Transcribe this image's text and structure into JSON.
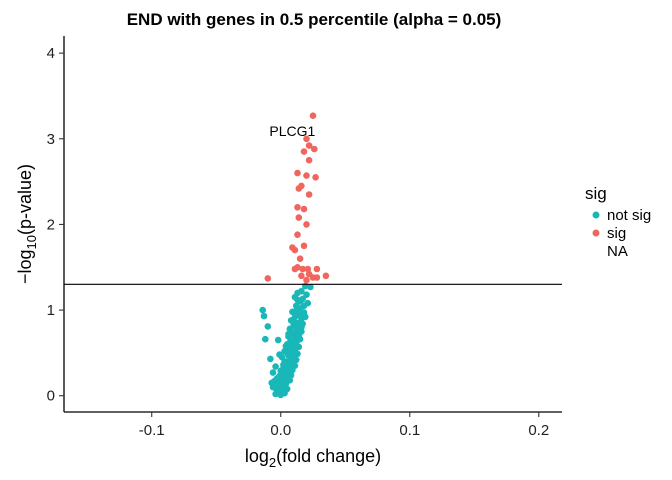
{
  "chart_data": {
    "type": "scatter",
    "title": "END with genes in 0.5 percentile (alpha = 0.05)",
    "xlabel": {
      "pre": "log",
      "sub": "2",
      "post": "(fold change)"
    },
    "ylabel": {
      "pre": "−log",
      "sub": "10",
      "post": "(p-value)"
    },
    "xlim": [
      -0.168,
      0.218
    ],
    "ylim": [
      -0.19,
      4.2
    ],
    "x_ticks": [
      -0.1,
      0.0,
      0.1,
      0.2
    ],
    "x_tick_labels": [
      "-0.1",
      "0.0",
      "0.1",
      "0.2"
    ],
    "y_ticks": [
      0,
      1,
      2,
      3,
      4
    ],
    "y_tick_labels": [
      "0",
      "1",
      "2",
      "3",
      "4"
    ],
    "hline": 1.301,
    "grid": false,
    "legend": {
      "title": "sig",
      "position": "right",
      "entries": [
        {
          "label": "not sig",
          "color": "#19b7b7"
        },
        {
          "label": "sig",
          "color": "#f0665e"
        },
        {
          "label": "NA",
          "color": null
        }
      ]
    },
    "annotations": [
      {
        "text": "PLCG1",
        "x": 0.009,
        "y": 3.09
      }
    ],
    "series": [
      {
        "name": "sig",
        "color": "#f0665e",
        "points": [
          [
            0.025,
            3.27
          ],
          [
            0.02,
            3.0
          ],
          [
            0.022,
            2.92
          ],
          [
            0.026,
            2.88
          ],
          [
            0.018,
            2.85
          ],
          [
            0.022,
            2.75
          ],
          [
            0.013,
            2.6
          ],
          [
            0.02,
            2.57
          ],
          [
            0.027,
            2.55
          ],
          [
            0.016,
            2.45
          ],
          [
            0.014,
            2.42
          ],
          [
            0.022,
            2.35
          ],
          [
            0.013,
            2.2
          ],
          [
            0.018,
            2.18
          ],
          [
            0.014,
            2.08
          ],
          [
            0.02,
            2.0
          ],
          [
            0.013,
            1.88
          ],
          [
            0.018,
            1.75
          ],
          [
            0.009,
            1.73
          ],
          [
            0.011,
            1.7
          ],
          [
            0.015,
            1.6
          ],
          [
            0.013,
            1.5
          ],
          [
            0.011,
            1.48
          ],
          [
            0.017,
            1.48
          ],
          [
            0.021,
            1.48
          ],
          [
            0.028,
            1.48
          ],
          [
            0.022,
            1.42
          ],
          [
            0.035,
            1.4
          ],
          [
            0.016,
            1.4
          ],
          [
            0.025,
            1.38
          ],
          [
            0.028,
            1.38
          ],
          [
            -0.01,
            1.37
          ],
          [
            0.02,
            1.35
          ]
        ]
      },
      {
        "name": "not sig",
        "color": "#19b7b7",
        "points": [
          [
            0.019,
            1.28
          ],
          [
            0.023,
            1.27
          ],
          [
            0.016,
            1.22
          ],
          [
            0.013,
            1.2
          ],
          [
            0.02,
            1.18
          ],
          [
            0.011,
            1.15
          ],
          [
            0.017,
            1.13
          ],
          [
            0.015,
            1.1
          ],
          [
            0.021,
            1.08
          ],
          [
            0.012,
            1.05
          ],
          [
            -0.014,
            1.0
          ],
          [
            0.009,
            0.98
          ],
          [
            0.018,
            0.97
          ],
          [
            0.014,
            0.95
          ],
          [
            -0.013,
            0.93
          ],
          [
            0.011,
            0.92
          ],
          [
            0.016,
            0.9
          ],
          [
            0.008,
            0.88
          ],
          [
            0.013,
            0.85
          ],
          [
            0.017,
            0.84
          ],
          [
            0.01,
            0.82
          ],
          [
            -0.01,
            0.81
          ],
          [
            0.014,
            0.8
          ],
          [
            0.007,
            0.78
          ],
          [
            0.012,
            0.76
          ],
          [
            0.016,
            0.75
          ],
          [
            0.009,
            0.73
          ],
          [
            0.013,
            0.71
          ],
          [
            0.006,
            0.69
          ],
          [
            0.011,
            0.68
          ],
          [
            0.015,
            0.66
          ],
          [
            -0.002,
            0.65
          ],
          [
            0.008,
            0.64
          ],
          [
            0.012,
            0.62
          ],
          [
            0.005,
            0.6
          ],
          [
            0.01,
            0.59
          ],
          [
            -0.012,
            0.66
          ],
          [
            0.014,
            0.57
          ],
          [
            0.007,
            0.55
          ],
          [
            0.011,
            0.54
          ],
          [
            0.003,
            0.52
          ],
          [
            0.009,
            0.5
          ],
          [
            0.013,
            0.49
          ],
          [
            0.006,
            0.47
          ],
          [
            0.01,
            0.46
          ],
          [
            0.001,
            0.45
          ],
          [
            0.008,
            0.43
          ],
          [
            0.012,
            0.42
          ],
          [
            0.004,
            0.4
          ],
          [
            -0.008,
            0.43
          ],
          [
            0.009,
            0.39
          ],
          [
            0.006,
            0.37
          ],
          [
            0.002,
            0.36
          ],
          [
            0.011,
            0.35
          ],
          [
            0.007,
            0.33
          ],
          [
            -0.004,
            0.34
          ],
          [
            0.004,
            0.31
          ],
          [
            0.009,
            0.3
          ],
          [
            0.0,
            0.29
          ],
          [
            0.006,
            0.28
          ],
          [
            -0.006,
            0.27
          ],
          [
            0.003,
            0.25
          ],
          [
            0.008,
            0.24
          ],
          [
            -0.001,
            0.23
          ],
          [
            0.005,
            0.22
          ],
          [
            -0.003,
            0.2
          ],
          [
            0.002,
            0.19
          ],
          [
            0.007,
            0.18
          ],
          [
            -0.005,
            0.17
          ],
          [
            0.0,
            0.15
          ],
          [
            0.004,
            0.14
          ],
          [
            -0.002,
            0.12
          ],
          [
            0.003,
            0.11
          ],
          [
            -0.006,
            0.1
          ],
          [
            0.001,
            0.09
          ],
          [
            0.005,
            0.08
          ],
          [
            -0.003,
            0.07
          ],
          [
            0.002,
            0.06
          ],
          [
            -0.001,
            0.04
          ],
          [
            -0.004,
            0.02
          ],
          [
            0.0,
            0.01
          ],
          [
            0.003,
            0.03
          ],
          [
            -0.007,
            0.15
          ],
          [
            0.001,
            0.3
          ],
          [
            -0.001,
            0.48
          ],
          [
            0.004,
            0.58
          ],
          [
            0.006,
            0.72
          ],
          [
            0.01,
            0.86
          ],
          [
            0.012,
            0.99
          ],
          [
            0.015,
            1.02
          ],
          [
            0.013,
            1.12
          ],
          [
            0.018,
            1.05
          ],
          [
            0.019,
            0.92
          ],
          [
            0.016,
            0.8
          ],
          [
            0.014,
            0.7
          ],
          [
            0.011,
            0.61
          ],
          [
            0.009,
            0.53
          ],
          [
            0.008,
            0.41
          ],
          [
            0.005,
            0.35
          ],
          [
            0.004,
            0.26
          ],
          [
            0.002,
            0.16
          ],
          [
            -0.002,
            0.06
          ],
          [
            0.007,
            0.62
          ],
          [
            0.005,
            0.5
          ],
          [
            0.003,
            0.4
          ]
        ]
      }
    ]
  }
}
